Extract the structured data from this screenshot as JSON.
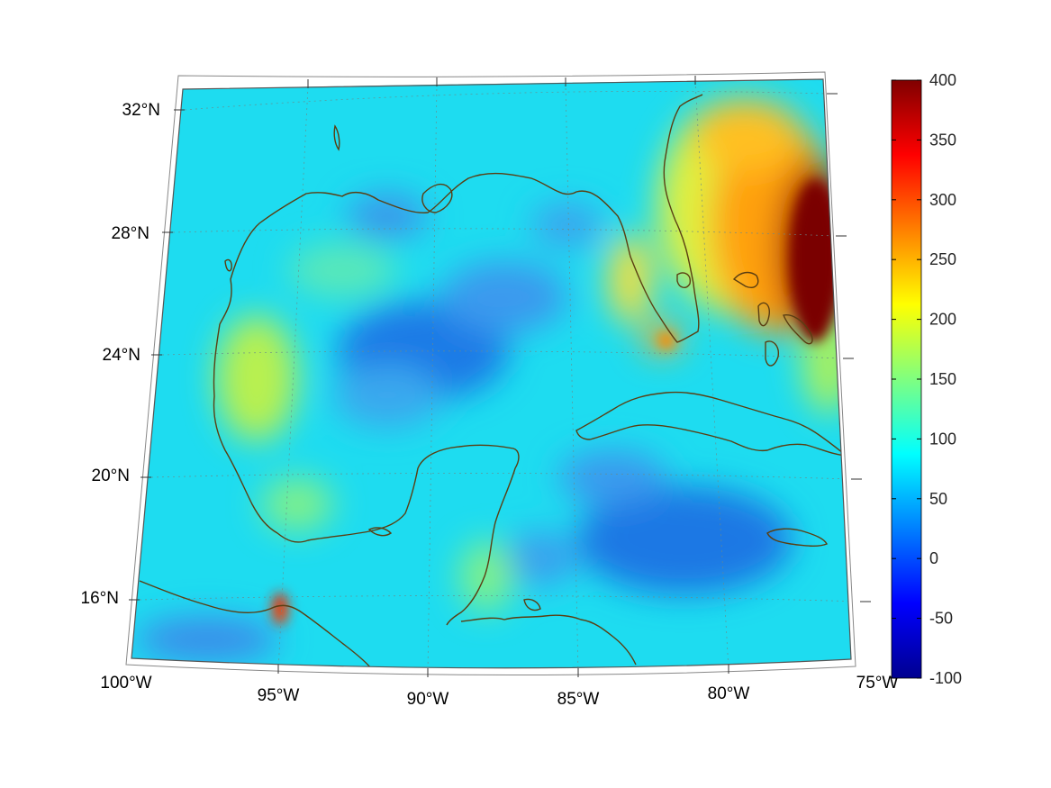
{
  "map": {
    "projection": "conic",
    "lon_range": [
      -100,
      -75
    ],
    "lat_range": [
      14,
      33
    ],
    "lat_labels": [
      "32°N",
      "28°N",
      "24°N",
      "20°N",
      "16°N"
    ],
    "lon_labels": [
      "100°W",
      "95°W",
      "90°W",
      "85°W",
      "80°W",
      "75°W"
    ],
    "coast_color": "#5a3e12",
    "grid_color": "#6a8a8a"
  },
  "colorbar": {
    "colormap": "jet",
    "range": [
      -100,
      400
    ],
    "tick_labels": [
      "400",
      "350",
      "300",
      "250",
      "200",
      "150",
      "100",
      "50",
      "0",
      "-50",
      "-100"
    ]
  },
  "chart_data": {
    "type": "heatmap",
    "title": "",
    "xlabel": "",
    "ylabel": "",
    "background_value": 100,
    "clim": [
      -100,
      400
    ],
    "features": [
      {
        "region": "east of Florida / Bahamas (Gulf Stream)",
        "value": 400
      },
      {
        "region": "off northeast Florida coast",
        "value": 250
      },
      {
        "region": "Florida Keys",
        "value": 250
      },
      {
        "region": "Gulf of Tehuantepec coast",
        "value": 330
      },
      {
        "region": "western Gulf of Mexico",
        "value": 165
      },
      {
        "region": "central Gulf of Mexico",
        "value": 50
      },
      {
        "region": "Caribbean south of Cuba",
        "value": 35
      },
      {
        "region": "northern Gulf near Mississippi delta",
        "value": 60
      }
    ]
  }
}
